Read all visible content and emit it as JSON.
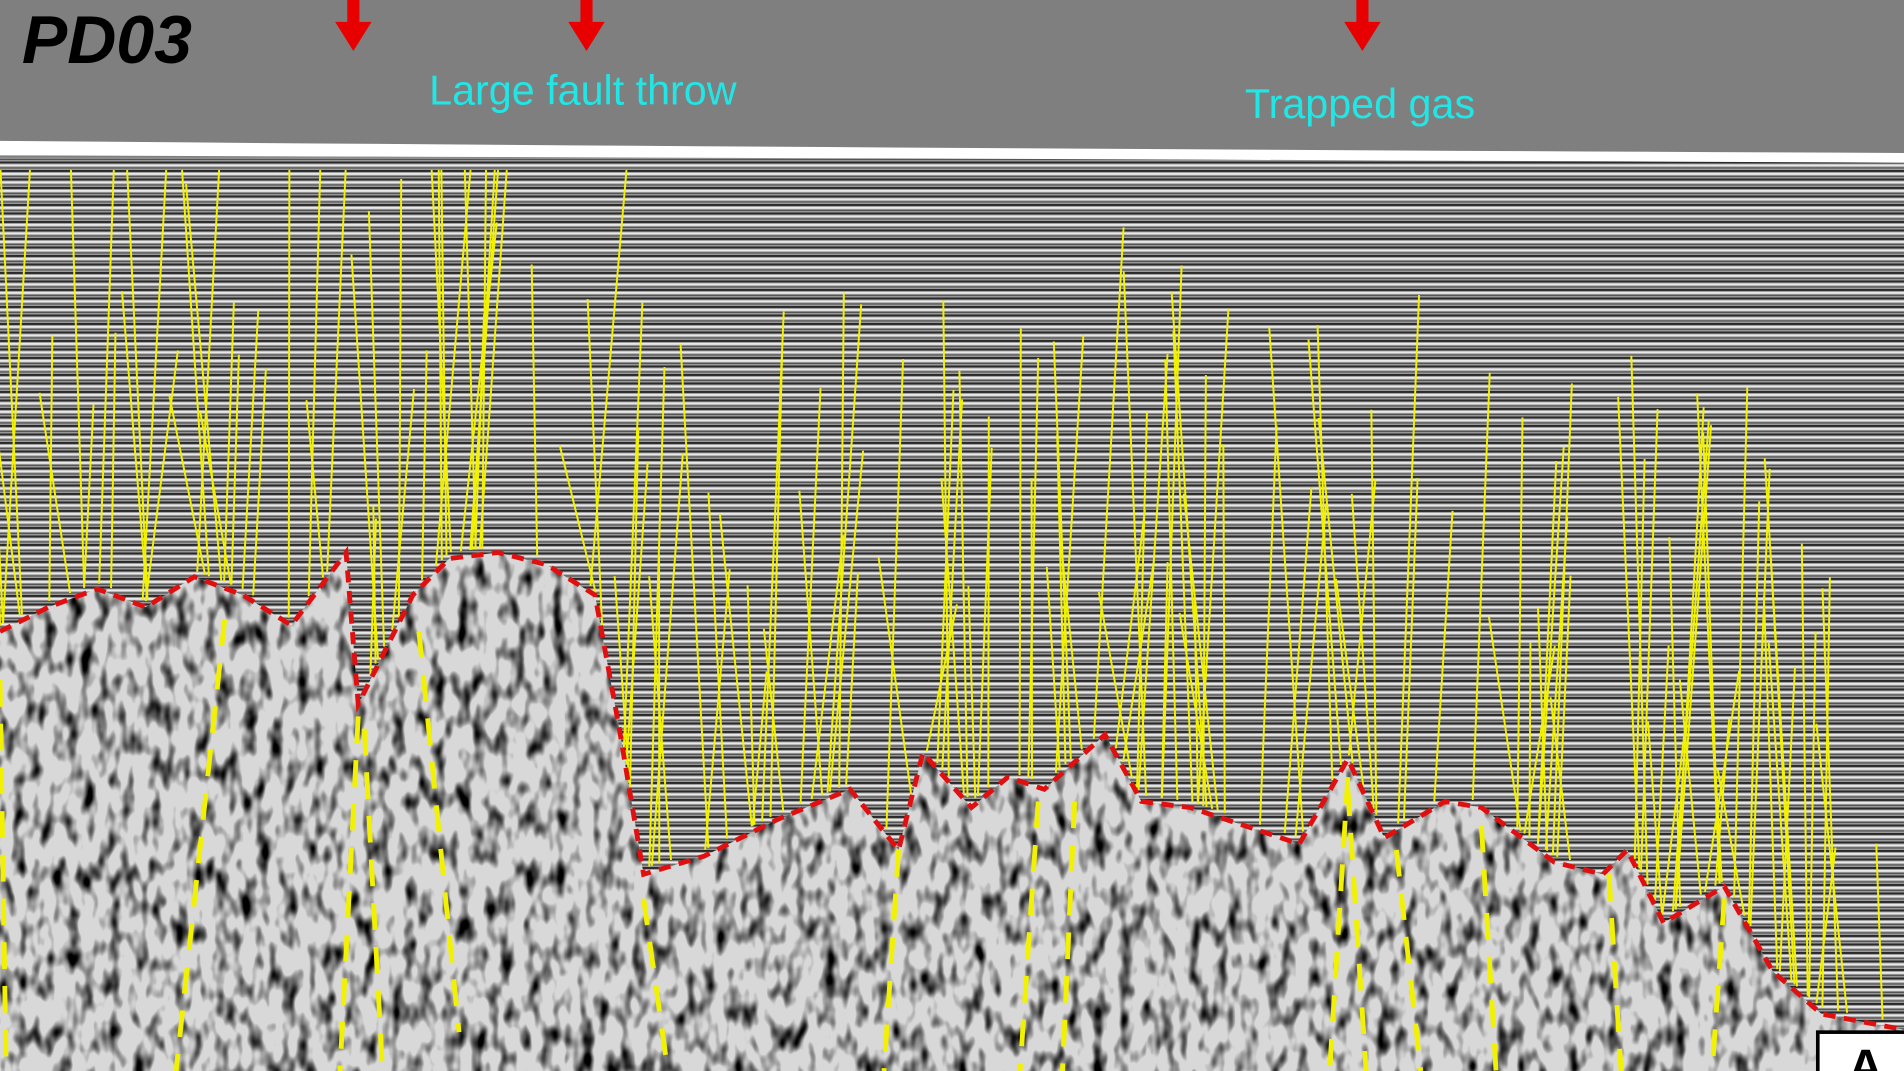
{
  "figure": {
    "title": "PD03",
    "annotations": [
      "Large fault throw",
      "Trapped gas"
    ],
    "panel_label": "A"
  }
}
